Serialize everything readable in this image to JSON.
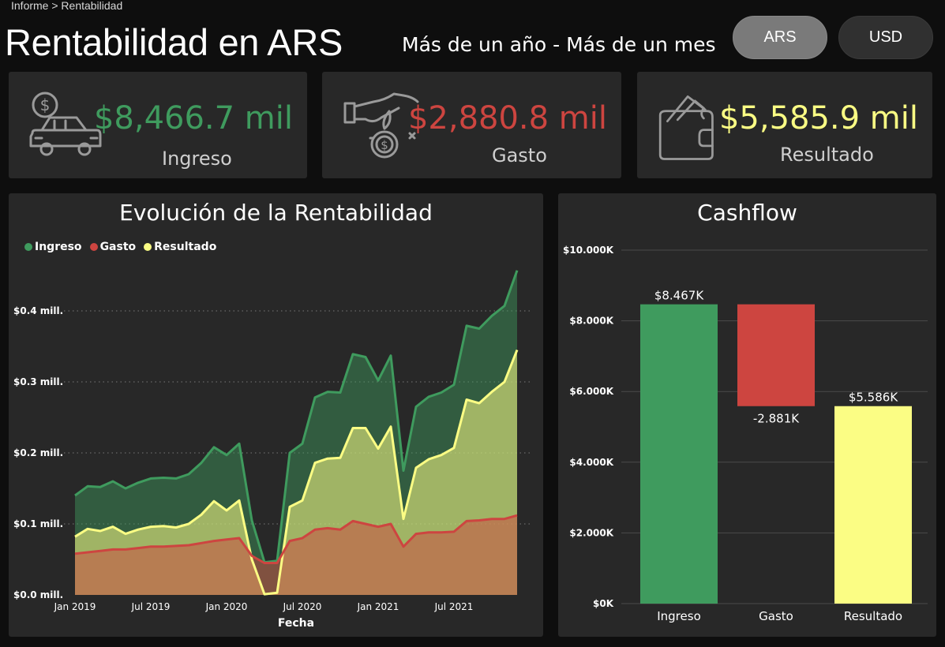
{
  "header": {
    "breadcrumb": "Informe > Rentabilidad",
    "title": "Rentabilidad en ARS",
    "subtitle": "Más de un año - Más de un mes"
  },
  "toggles": [
    {
      "label": "ARS",
      "selected": true
    },
    {
      "label": "USD",
      "selected": false
    }
  ],
  "kpis": {
    "ingreso": {
      "value": "$8,466.7 mil",
      "label": "Ingreso",
      "color": "#3f9b5e",
      "icon": "car-money-icon"
    },
    "gasto": {
      "value": "$2,880.8 mil",
      "label": "Gasto",
      "color": "#cd4540",
      "icon": "hand-coin-icon"
    },
    "resultado": {
      "value": "$5,585.9 mil",
      "label": "Resultado",
      "color": "#fbfd84",
      "icon": "wallet-icon"
    }
  },
  "colors": {
    "ingreso": "#3f9b5e",
    "gasto": "#cd4540",
    "resultado": "#fbfd84"
  },
  "chart_data": [
    {
      "type": "area",
      "title": "Evolución de la Rentabilidad",
      "xlabel": "Fecha",
      "ylabel": "",
      "legend": [
        "Ingreso",
        "Gasto",
        "Resultado"
      ],
      "legend_position": "top-left",
      "x_ticks": [
        "Jan 2019",
        "Jul 2019",
        "Jan 2020",
        "Jul 2020",
        "Jan 2021",
        "Jul 2021"
      ],
      "y_ticks": [
        "$0.0 mill.",
        "$0.1 mill.",
        "$0.2 mill.",
        "$0.3 mill.",
        "$0.4 mill."
      ],
      "ylim": [
        0,
        0.4
      ],
      "grid": true,
      "x_start": "Jan 2019",
      "x_interval": "month",
      "series": [
        {
          "name": "Ingreso",
          "values": [
            0.14,
            0.153,
            0.152,
            0.16,
            0.15,
            0.158,
            0.164,
            0.165,
            0.164,
            0.17,
            0.186,
            0.208,
            0.197,
            0.213,
            0.105,
            0.046,
            0.048,
            0.2,
            0.213,
            0.278,
            0.286,
            0.285,
            0.339,
            0.335,
            0.302,
            0.337,
            0.175,
            0.265,
            0.279,
            0.285,
            0.296,
            0.379,
            0.375,
            0.393,
            0.407,
            0.457
          ]
        },
        {
          "name": "Gasto",
          "values": [
            0.058,
            0.06,
            0.062,
            0.064,
            0.064,
            0.066,
            0.068,
            0.068,
            0.069,
            0.07,
            0.073,
            0.076,
            0.078,
            0.08,
            0.055,
            0.045,
            0.045,
            0.076,
            0.08,
            0.092,
            0.094,
            0.092,
            0.104,
            0.1,
            0.096,
            0.1,
            0.068,
            0.086,
            0.088,
            0.088,
            0.089,
            0.104,
            0.105,
            0.107,
            0.107,
            0.112
          ]
        },
        {
          "name": "Resultado",
          "values": [
            0.082,
            0.093,
            0.09,
            0.096,
            0.086,
            0.092,
            0.096,
            0.097,
            0.095,
            0.1,
            0.113,
            0.132,
            0.119,
            0.133,
            0.05,
            0.001,
            0.003,
            0.124,
            0.133,
            0.186,
            0.192,
            0.193,
            0.235,
            0.235,
            0.206,
            0.237,
            0.107,
            0.179,
            0.191,
            0.197,
            0.207,
            0.275,
            0.27,
            0.286,
            0.3,
            0.345
          ]
        }
      ]
    },
    {
      "type": "bar",
      "subtype": "waterfall",
      "title": "Cashflow",
      "categories": [
        "Ingreso",
        "Gasto",
        "Resultado"
      ],
      "values": [
        8467,
        -2881,
        5586
      ],
      "data_labels": [
        "$8.467K",
        "-2.881K",
        "$5.586K"
      ],
      "y_ticks": [
        "$0K",
        "$2.000K",
        "$4.000K",
        "$6.000K",
        "$8.000K",
        "$10.000K"
      ],
      "ylim": [
        0,
        10000
      ],
      "grid": true
    }
  ]
}
